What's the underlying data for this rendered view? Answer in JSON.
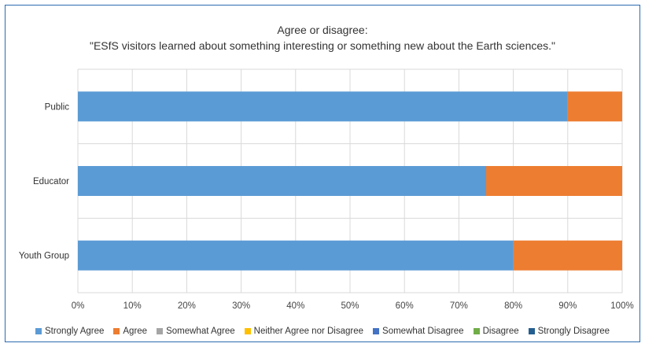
{
  "chart_data": {
    "type": "bar",
    "orientation": "horizontal",
    "stacked": true,
    "title": "Agree or disagree:",
    "subtitle": "\"ESfS visitors learned about something interesting or something new about the Earth sciences.\"",
    "categories": [
      "Public",
      "Educator",
      "Youth Group"
    ],
    "x_ticks": [
      "0%",
      "10%",
      "20%",
      "30%",
      "40%",
      "50%",
      "60%",
      "70%",
      "80%",
      "90%",
      "100%"
    ],
    "xlim": [
      0,
      100
    ],
    "grid": true,
    "legend_position": "bottom",
    "series": [
      {
        "name": "Strongly Agree",
        "color": "#5b9bd5",
        "values": [
          90,
          75,
          80
        ]
      },
      {
        "name": "Agree",
        "color": "#ed7d31",
        "values": [
          10,
          25,
          20
        ]
      },
      {
        "name": "Somewhat Agree",
        "color": "#a5a5a5",
        "values": [
          0,
          0,
          0
        ]
      },
      {
        "name": "Neither Agree nor Disagree",
        "color": "#ffc000",
        "values": [
          0,
          0,
          0
        ]
      },
      {
        "name": "Somewhat Disagree",
        "color": "#4472c4",
        "values": [
          0,
          0,
          0
        ]
      },
      {
        "name": "Disagree",
        "color": "#70ad47",
        "values": [
          0,
          0,
          0
        ]
      },
      {
        "name": "Strongly Disagree",
        "color": "#255e91",
        "values": [
          0,
          0,
          0
        ]
      }
    ]
  }
}
